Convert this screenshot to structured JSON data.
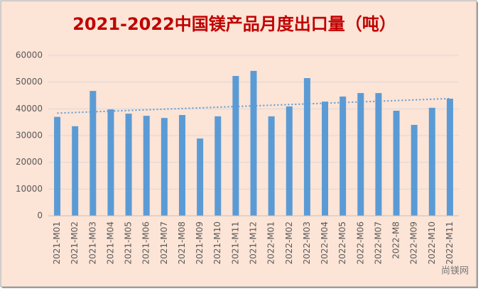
{
  "chart_data": {
    "type": "bar",
    "title": "2021-2022中国镁产品月度出口量（吨）",
    "categories": [
      "2021-M01",
      "2021-M02",
      "2021-M03",
      "2021-M04",
      "2021-M05",
      "2021-M06",
      "2021-M07",
      "2021-M08",
      "2021-M09",
      "2021-M10",
      "2021-M11",
      "2021-M12",
      "2022-M01",
      "2022-M02",
      "2022-M03",
      "2022-M04",
      "2022-M05",
      "2022-M06",
      "2022-M07",
      "2022-M8",
      "2022-M09",
      "2022-M10",
      "2022-M11"
    ],
    "values": [
      37000,
      33500,
      46700,
      39800,
      38200,
      37400,
      36600,
      37700,
      28900,
      37200,
      52300,
      54200,
      37200,
      40900,
      51500,
      42700,
      44600,
      45900,
      45900,
      39300,
      34000,
      40400,
      43800
    ],
    "color": "#5b9bd5",
    "trendline": true,
    "ylim": [
      0,
      60000
    ],
    "yticks": [
      0,
      10000,
      20000,
      30000,
      40000,
      50000,
      60000
    ],
    "grid": true,
    "watermark": "尚镁网"
  }
}
